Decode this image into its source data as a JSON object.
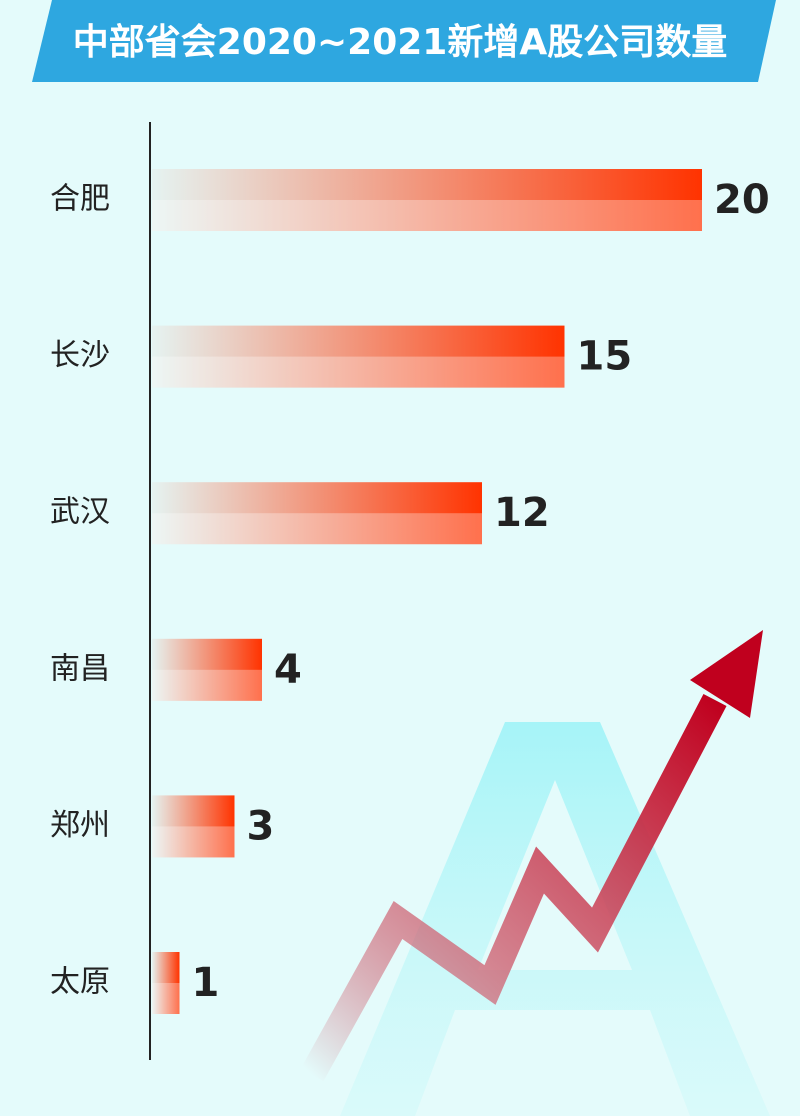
{
  "chart_data": {
    "type": "bar",
    "title": "中部省会2020~2021新增A股公司数量",
    "categories": [
      "合肥",
      "长沙",
      "武汉",
      "南昌",
      "郑州",
      "太原"
    ],
    "values": [
      20,
      15,
      12,
      4,
      3,
      1
    ],
    "color": "#ff3300"
  }
}
